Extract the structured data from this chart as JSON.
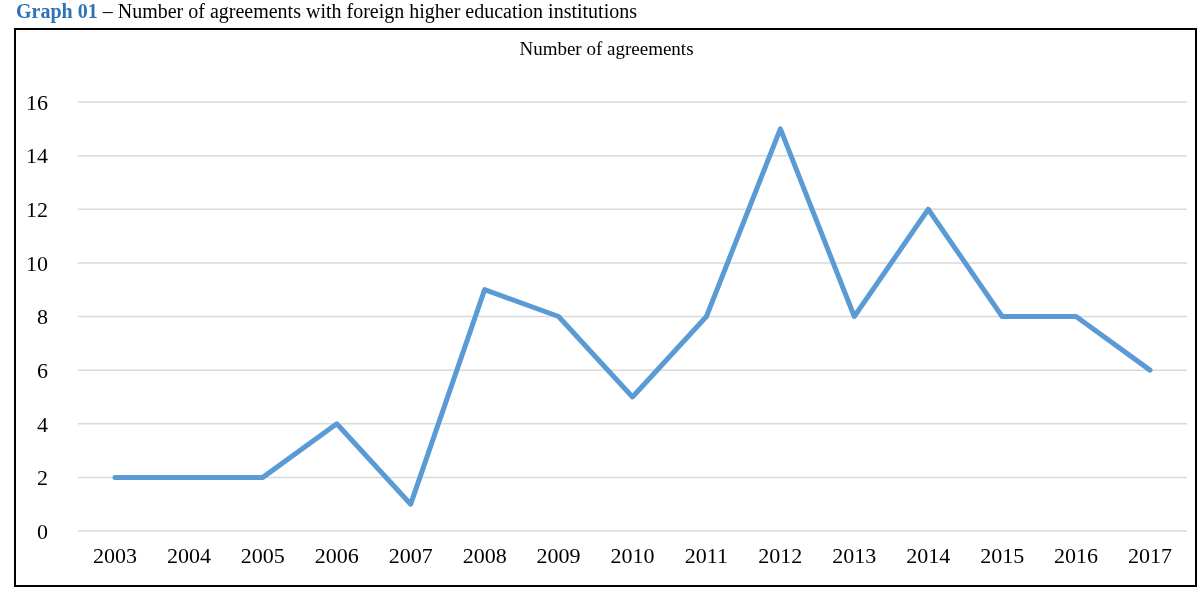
{
  "chart_data": {
    "type": "line",
    "title": "Number of agreements",
    "annotations": [
      "Graph 01",
      "– Number of agreements with foreign higher education institutions"
    ],
    "categories": [
      "2003",
      "2004",
      "2005",
      "2006",
      "2007",
      "2008",
      "2009",
      "2010",
      "2011",
      "2012",
      "2013",
      "2014",
      "2015",
      "2016",
      "2017"
    ],
    "series": [
      {
        "color": "#5b9bd5",
        "values": [
          2,
          2,
          2,
          4,
          1,
          9,
          8,
          5,
          8,
          15,
          8,
          12,
          8,
          8,
          6
        ]
      }
    ],
    "ylim": [
      0,
      16
    ],
    "yticks": [
      0,
      2,
      4,
      6,
      8,
      10,
      12,
      14,
      16
    ],
    "grid": "y",
    "legend": false,
    "marker": "none",
    "line_style": "solid"
  }
}
